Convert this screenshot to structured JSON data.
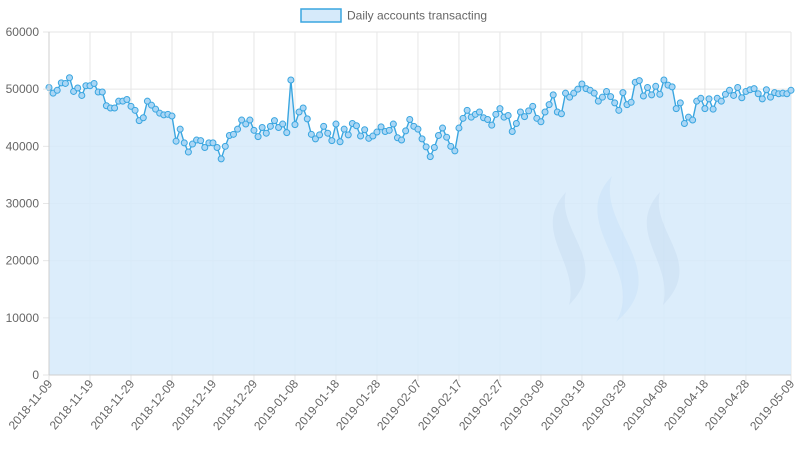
{
  "chart_data": {
    "type": "area",
    "legend": {
      "label": "Daily accounts transacting",
      "position": "top"
    },
    "colors": {
      "line": "#3aa6e0",
      "fill": "#d6eafa",
      "point_fill": "#aad6f5",
      "grid": "#e6e6e6",
      "tick_text": "#666666",
      "watermark": "#7f95c1",
      "watermark_mid": "#80b8f0"
    },
    "watermark_icon": "steem-logo-icon",
    "ylim": [
      0,
      60000
    ],
    "yticks": [
      0,
      10000,
      20000,
      30000,
      40000,
      50000,
      60000
    ],
    "grid": true,
    "x_start": "2018-11-09",
    "x_end": "2019-05-09",
    "xtick_labels": [
      "2018-11-09",
      "2018-11-19",
      "2018-11-29",
      "2018-12-09",
      "2018-12-19",
      "2018-12-29",
      "2019-01-08",
      "2019-01-18",
      "2019-01-28",
      "2019-02-07",
      "2019-02-17",
      "2019-02-27",
      "2019-03-09",
      "2019-03-19",
      "2019-03-29",
      "2019-04-08",
      "2019-04-18",
      "2019-04-28",
      "2019-05-09"
    ],
    "values": [
      50300,
      49300,
      49800,
      51100,
      51000,
      52000,
      49600,
      50200,
      48900,
      50600,
      50600,
      51000,
      49500,
      49500,
      47100,
      46700,
      46700,
      47900,
      47900,
      48200,
      47000,
      46300,
      44500,
      45000,
      47900,
      47200,
      46500,
      45800,
      45500,
      45600,
      45300,
      40900,
      43000,
      40600,
      39000,
      40400,
      41100,
      41000,
      39800,
      40600,
      40600,
      39800,
      37800,
      40000,
      41900,
      42100,
      43000,
      44600,
      43900,
      44600,
      42800,
      41700,
      43300,
      42300,
      43500,
      44500,
      43300,
      43900,
      42400,
      51600,
      43800,
      46000,
      46700,
      44800,
      42100,
      41300,
      42000,
      43500,
      42300,
      41000,
      43900,
      40800,
      43000,
      42000,
      44000,
      43600,
      41800,
      42900,
      41400,
      41800,
      42500,
      43400,
      42600,
      42800,
      43900,
      41500,
      41100,
      42700,
      44700,
      43500,
      43000,
      41300,
      39900,
      38200,
      39800,
      41900,
      43200,
      41600,
      40000,
      39200,
      43200,
      44900,
      46300,
      45100,
      45600,
      46000,
      45000,
      44700,
      43700,
      45600,
      46600,
      45100,
      45400,
      42600,
      44000,
      46000,
      45200,
      46200,
      47000,
      44900,
      44300,
      46000,
      47300,
      49000,
      46000,
      45700,
      49300,
      48600,
      49300,
      50000,
      50900,
      50100,
      49800,
      49300,
      47900,
      48600,
      49600,
      48700,
      47600,
      46300,
      49400,
      47300,
      47700,
      51200,
      51500,
      48800,
      50300,
      49000,
      50500,
      49100,
      51600,
      50700,
      50400,
      46600,
      47600,
      44000,
      45100,
      44600,
      47900,
      48400,
      46600,
      48300,
      46500,
      48400,
      47900,
      49100,
      49800,
      48900,
      50300,
      48500,
      49600,
      49900,
      50100,
      49200,
      48300,
      49900,
      48600,
      49400,
      49200,
      49300,
      49200,
      49800
    ]
  }
}
